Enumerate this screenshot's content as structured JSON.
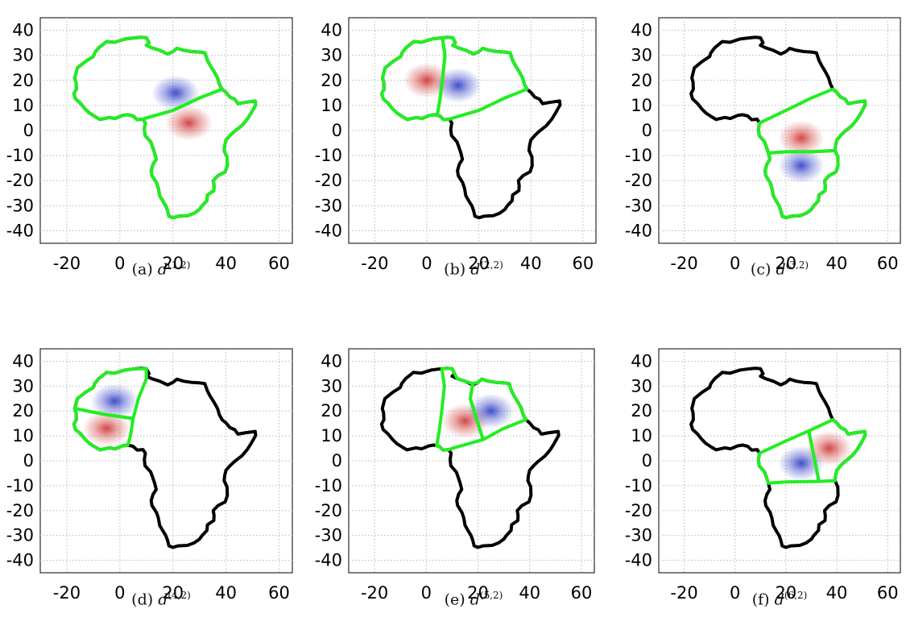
{
  "figure": {
    "panels": [
      {
        "caption_label": "(a)",
        "symbol": "d",
        "superscript": "(1,2)",
        "outline_colors": {
          "green_regions": [
            "A1",
            "A2"
          ]
        },
        "blobs": [
          {
            "lon": 21,
            "lat": 15,
            "color": "blue"
          },
          {
            "lon": 26,
            "lat": 3,
            "color": "red"
          }
        ]
      },
      {
        "caption_label": "(b)",
        "symbol": "d",
        "superscript": "(2,2)",
        "outline_colors": {
          "green_regions": [
            "B1",
            "B2"
          ]
        },
        "blobs": [
          {
            "lon": 0,
            "lat": 20,
            "color": "red"
          },
          {
            "lon": 12,
            "lat": 18,
            "color": "blue"
          }
        ]
      },
      {
        "caption_label": "(c)",
        "symbol": "d",
        "superscript": "(3,2)",
        "outline_colors": {
          "green_regions": [
            "C1",
            "C2"
          ]
        },
        "blobs": [
          {
            "lon": 26,
            "lat": -3,
            "color": "red"
          },
          {
            "lon": 26,
            "lat": -14,
            "color": "blue"
          }
        ]
      },
      {
        "caption_label": "(d)",
        "symbol": "d",
        "superscript": "(4,2)",
        "outline_colors": {
          "green_regions": [
            "D1",
            "D2"
          ]
        },
        "blobs": [
          {
            "lon": -2,
            "lat": 24,
            "color": "blue"
          },
          {
            "lon": -5,
            "lat": 13,
            "color": "red"
          }
        ]
      },
      {
        "caption_label": "(e)",
        "symbol": "d",
        "superscript": "(5,2)",
        "outline_colors": {
          "green_regions": [
            "E1",
            "E2"
          ]
        },
        "blobs": [
          {
            "lon": 15,
            "lat": 16,
            "color": "red"
          },
          {
            "lon": 25,
            "lat": 20,
            "color": "blue"
          }
        ]
      },
      {
        "caption_label": "(f)",
        "symbol": "d",
        "superscript": "(6,2)",
        "outline_colors": {
          "green_regions": [
            "F1",
            "F2"
          ]
        },
        "blobs": [
          {
            "lon": 26,
            "lat": -1,
            "color": "blue"
          },
          {
            "lon": 37,
            "lat": 5,
            "color": "red"
          }
        ]
      }
    ],
    "axes": {
      "xlim": [
        -30,
        65
      ],
      "ylim": [
        -45,
        45
      ],
      "x_ticks": [
        -20,
        0,
        20,
        40,
        60
      ],
      "y_ticks": [
        40,
        30,
        20,
        10,
        0,
        -10,
        -20,
        -30,
        -40
      ],
      "grid": true
    },
    "colors": {
      "highlight": "#22ee22",
      "outline": "#000000",
      "blue": "#2030c0",
      "red": "#cc2828",
      "grid": "#b8b8b8"
    }
  }
}
